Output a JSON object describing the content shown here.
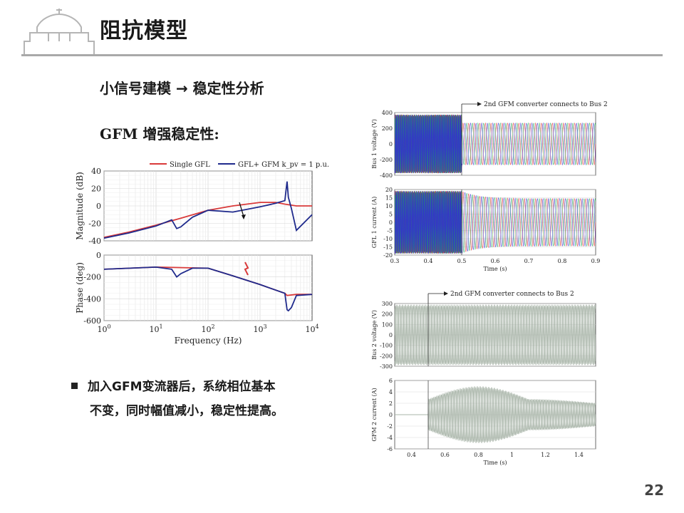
{
  "slide": {
    "title": "阻抗模型",
    "subtitle": "小信号建模 → 稳定性分析",
    "gfm_heading": "GFM 增强稳定性:",
    "bullet_line1": "加入GFM变流器后，系统相位基本",
    "bullet_line2": "不变，同时幅值减小，稳定性提高。",
    "page_number": "22"
  },
  "colors": {
    "red_series": "#d93a3a",
    "blue_series": "#1f2a8c",
    "header_line": "#a9a9a9"
  },
  "chart_data": [
    {
      "type": "line",
      "panel": "bode-magnitude",
      "legend": [
        "Single GFL",
        "GFL+ GFM k_pv = 1 p.u."
      ],
      "legend_placement": "top",
      "xlabel": "Frequency (Hz)",
      "ylabel": "Magnitude (dB)",
      "xscale": "log",
      "xlim": [
        1,
        10000
      ],
      "ylim": [
        -40,
        40
      ],
      "yticks": [
        "40",
        "20",
        "0",
        "-20",
        "-40"
      ],
      "grid": true,
      "series": [
        {
          "name": "Single GFL",
          "x": [
            1,
            3,
            10,
            30,
            100,
            300,
            1000,
            2000,
            3000,
            5000,
            10000
          ],
          "y": [
            -36,
            -30,
            -22,
            -14,
            -5,
            0,
            4,
            4,
            2,
            0,
            0
          ]
        },
        {
          "name": "GFL+ GFM k_pv = 1 p.u.",
          "x": [
            1,
            3,
            10,
            20,
            25,
            30,
            50,
            100,
            300,
            1000,
            2000,
            3000,
            3300,
            3500,
            4000,
            5000,
            10000
          ],
          "y": [
            -37,
            -31,
            -23,
            -16,
            -26,
            -24,
            -13,
            -5,
            -7,
            -1,
            3,
            6,
            28,
            10,
            -3,
            -28,
            -10
          ]
        }
      ]
    },
    {
      "type": "line",
      "panel": "bode-phase",
      "xlabel": "Frequency (Hz)",
      "ylabel": "Phase (deg)",
      "xscale": "log",
      "xlim": [
        1,
        10000
      ],
      "ylim": [
        -600,
        0
      ],
      "yticks": [
        "0",
        "-200",
        "-400",
        "-600"
      ],
      "xticks": [
        "10^0",
        "10^1",
        "10^2",
        "10^3",
        "10^4"
      ],
      "grid": true,
      "series": [
        {
          "name": "Single GFL",
          "x": [
            1,
            10,
            100,
            300,
            1000,
            3000,
            3300,
            5000,
            10000
          ],
          "y": [
            -130,
            -110,
            -120,
            -190,
            -270,
            -350,
            -370,
            -360,
            -360
          ]
        },
        {
          "name": "GFL+ GFM k_pv = 1 p.u.",
          "x": [
            1,
            10,
            20,
            25,
            30,
            50,
            100,
            300,
            1000,
            3000,
            3300,
            3500,
            4000,
            5000,
            10000
          ],
          "y": [
            -130,
            -110,
            -130,
            -200,
            -170,
            -120,
            -120,
            -190,
            -270,
            -350,
            -500,
            -510,
            -480,
            -370,
            -360
          ]
        }
      ]
    },
    {
      "type": "line",
      "panel": "bus1-voltage",
      "annotation": "2nd GFM converter connects to Bus 2",
      "ylabel": "Bus 1 voltage (V)",
      "xlim": [
        0.3,
        0.9
      ],
      "yticks": [
        "400",
        "200",
        "0",
        "-200",
        "-400"
      ],
      "description_values": {
        "before_amplitude": 420,
        "after_amplitude": 300,
        "event_time": 0.5
      }
    },
    {
      "type": "line",
      "panel": "gfl1-current",
      "ylabel": "GFL 1 current (A)",
      "xlabel": "Time (s)",
      "xlim": [
        0.3,
        0.9
      ],
      "xticks": [
        "0.3",
        "0.4",
        "0.5",
        "0.6",
        "0.7",
        "0.8",
        "0.9"
      ],
      "yticks": [
        "20",
        "15",
        "10",
        "5",
        "0",
        "-5",
        "-10",
        "-15",
        "-20"
      ],
      "description_values": {
        "before_amplitude": 21,
        "after_amplitude": 16,
        "event_time": 0.5
      }
    },
    {
      "type": "line",
      "panel": "bus2-voltage",
      "annotation": "2nd GFM converter connects to Bus 2",
      "ylabel": "Bus 2 voltage (V)",
      "xlim": [
        0.3,
        1.5
      ],
      "yticks": [
        "300",
        "200",
        "100",
        "0",
        "-100",
        "-200",
        "-300"
      ],
      "description_values": {
        "amplitude": 310,
        "event_time": 0.5
      }
    },
    {
      "type": "line",
      "panel": "gfm2-current",
      "ylabel": "GFM 2 current (A)",
      "xlabel": "Time (s)",
      "xlim": [
        0.3,
        1.5
      ],
      "xticks": [
        "0.4",
        "0.6",
        "0.8",
        "1",
        "1.2",
        "1.4"
      ],
      "yticks": [
        "6",
        "4",
        "2",
        "0",
        "-2",
        "-4",
        "-6"
      ],
      "description_values": {
        "peak_amplitude": 5,
        "event_time": 0.5
      }
    }
  ]
}
